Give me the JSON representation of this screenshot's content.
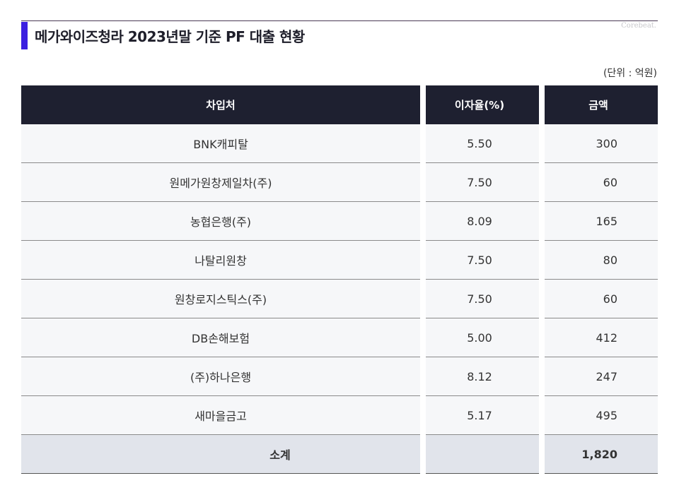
{
  "brand": "Corebeat.",
  "title": "메가와이즈청라 2023년말 기준 PF 대출 현황",
  "unit": "(단위 : 억원)",
  "table": {
    "headers": [
      "차입처",
      "이자율(%)",
      "금액"
    ],
    "rows": [
      [
        "BNK캐피탈",
        "5.50",
        "300"
      ],
      [
        "원메가원창제일차(주)",
        "7.50",
        "60"
      ],
      [
        "농협은행(주)",
        "8.09",
        "165"
      ],
      [
        "나탈리원창",
        "7.50",
        "80"
      ],
      [
        "원창로지스틱스(주)",
        "7.50",
        "60"
      ],
      [
        "DB손해보험",
        "5.00",
        "412"
      ],
      [
        "(주)하나은행",
        "8.12",
        "247"
      ],
      [
        "새마을금고",
        "5.17",
        "495"
      ]
    ],
    "total": {
      "label": "소계",
      "amount": "1,820"
    }
  }
}
